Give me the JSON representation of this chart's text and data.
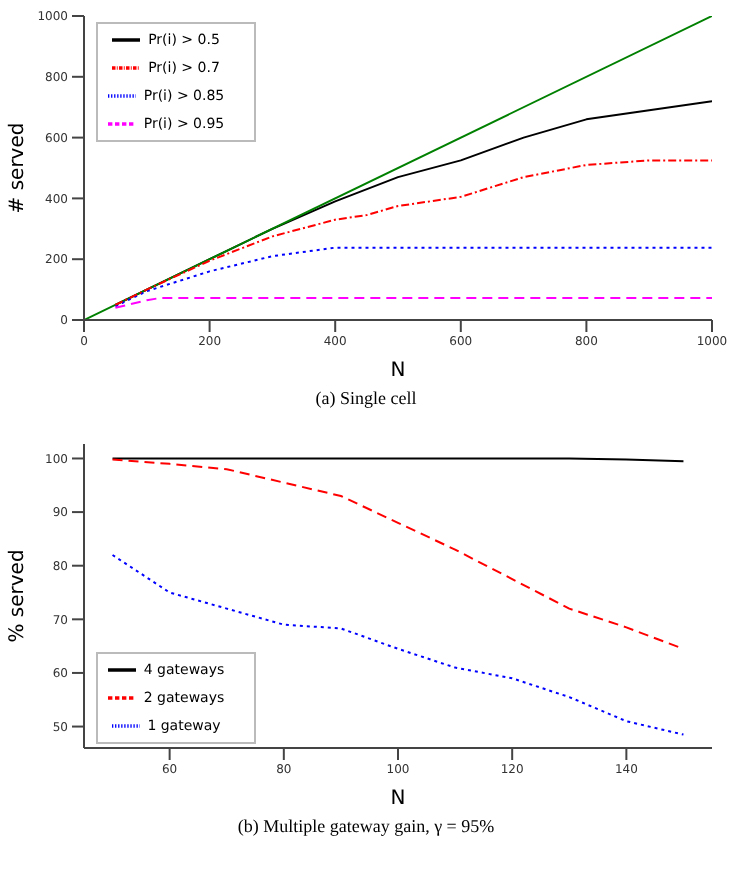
{
  "chart_data": [
    {
      "type": "line",
      "xlabel": "N",
      "ylabel": "# served",
      "annotations": [
        "(a) Single cell"
      ],
      "xlim": [
        0,
        1000
      ],
      "ylim": [
        0,
        1000
      ],
      "xticks": [
        0,
        200,
        400,
        600,
        800,
        1000
      ],
      "yticks": [
        0,
        200,
        400,
        600,
        800,
        1000
      ],
      "grid": false,
      "legend": "top left",
      "marker": "none",
      "series": [
        {
          "name": "Pr(i) > 0.5",
          "color": "#000000",
          "line_style": "solid",
          "x": [
            50,
            100,
            200,
            300,
            400,
            500,
            600,
            700,
            800,
            900,
            1000
          ],
          "values": [
            50,
            100,
            200,
            300,
            390,
            470,
            525,
            600,
            660,
            690,
            720
          ]
        },
        {
          "name": "Pr(i) > 0.7",
          "color": "#ff0000",
          "line_style": "dashdot",
          "x": [
            50,
            100,
            200,
            300,
            400,
            450,
            500,
            600,
            700,
            800,
            900,
            1000
          ],
          "values": [
            50,
            100,
            195,
            275,
            330,
            345,
            375,
            405,
            470,
            510,
            525,
            525
          ]
        },
        {
          "name": "Pr(i) > 0.85",
          "color": "#0000ff",
          "line_style": "dotted",
          "x": [
            50,
            100,
            200,
            300,
            400,
            500,
            600,
            700,
            800,
            900,
            1000
          ],
          "values": [
            45,
            95,
            160,
            210,
            238,
            238,
            238,
            238,
            238,
            238,
            238
          ]
        },
        {
          "name": "Pr(i) > 0.95",
          "color": "#ff00ff",
          "line_style": "dashed",
          "x": [
            50,
            100,
            120,
            200,
            400,
            600,
            800,
            1000
          ],
          "values": [
            40,
            65,
            72,
            72,
            72,
            72,
            72,
            72
          ]
        },
        {
          "color": "#008000",
          "line_style": "solid",
          "x": [
            0,
            1000
          ],
          "values": [
            0,
            1000
          ]
        }
      ]
    },
    {
      "type": "line",
      "xlabel": "N",
      "ylabel": "% served",
      "annotations": [
        "(b) Multiple gateway gain, γ = 95%"
      ],
      "xlim": [
        45,
        155
      ],
      "ylim": [
        46,
        102.7
      ],
      "xticks": [
        60,
        80,
        100,
        120,
        140
      ],
      "yticks": [
        50,
        60,
        70,
        80,
        90,
        100
      ],
      "grid": false,
      "legend": "bottom left",
      "marker": "none",
      "series": [
        {
          "name": "4 gateways",
          "color": "#000000",
          "line_style": "solid",
          "x": [
            50,
            60,
            70,
            80,
            90,
            100,
            110,
            120,
            130,
            140,
            150
          ],
          "values": [
            100,
            100,
            100,
            100,
            100,
            100,
            100,
            100,
            100,
            99.8,
            99.5
          ]
        },
        {
          "name": "2 gateways",
          "color": "#ff0000",
          "line_style": "dashed",
          "x": [
            50,
            60,
            70,
            80,
            90,
            100,
            110,
            120,
            130,
            140,
            150
          ],
          "values": [
            99.8,
            99,
            98,
            95.5,
            93,
            88,
            83,
            77.5,
            72,
            68.5,
            64.5
          ]
        },
        {
          "name": "1 gateway",
          "color": "#0000ff",
          "line_style": "dotted",
          "x": [
            50,
            60,
            70,
            80,
            90,
            100,
            110,
            120,
            130,
            140,
            150
          ],
          "values": [
            82,
            75,
            72,
            69,
            68.3,
            64.5,
            61,
            59,
            55.5,
            51,
            48.5
          ]
        }
      ]
    }
  ]
}
